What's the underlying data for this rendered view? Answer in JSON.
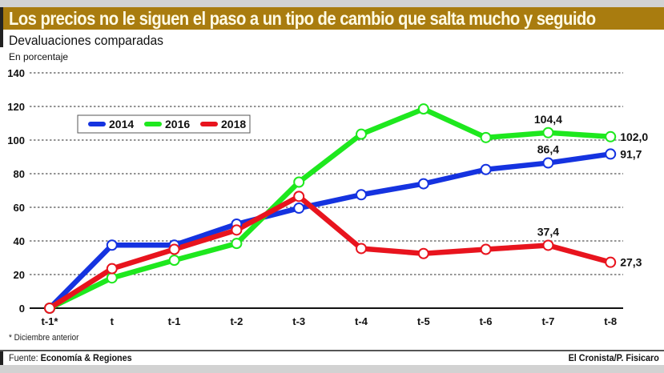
{
  "header": {
    "title": "Los precios no le siguen el paso a un tipo de cambio que salta mucho y seguido",
    "accent_color": "#a97c0f"
  },
  "chart_data": {
    "type": "line",
    "title": "Devaluaciones comparadas",
    "subtitle": "En porcentaje",
    "xlabel": "",
    "ylabel": "",
    "categories": [
      "t-1*",
      "t",
      "t-1",
      "t-2",
      "t-3",
      "t-4",
      "t-5",
      "t-6",
      "t-7",
      "t-8"
    ],
    "ylim": [
      0,
      140
    ],
    "yticks": [
      0,
      20,
      40,
      60,
      80,
      100,
      120,
      140
    ],
    "grid": true,
    "legend_position": "top-left",
    "series": [
      {
        "name": "2014",
        "color": "#1533e0",
        "values": [
          0,
          37.5,
          37.5,
          50,
          59.5,
          67.5,
          74,
          82.5,
          86.4,
          91.7
        ]
      },
      {
        "name": "2016",
        "color": "#1ee81e",
        "values": [
          0,
          18,
          28.5,
          38.5,
          75,
          103.5,
          118.5,
          101.5,
          104.4,
          102.0
        ]
      },
      {
        "name": "2018",
        "color": "#e8141e",
        "values": [
          0,
          23.5,
          35,
          46.5,
          66.5,
          35.5,
          32.5,
          35,
          37.4,
          27.3
        ]
      }
    ],
    "annotations": [
      {
        "series": "2016",
        "category": "t-7",
        "text": "104,4",
        "placement": "above"
      },
      {
        "series": "2016",
        "category": "t-8",
        "text": "102,0",
        "placement": "right"
      },
      {
        "series": "2014",
        "category": "t-7",
        "text": "86,4",
        "placement": "above"
      },
      {
        "series": "2014",
        "category": "t-8",
        "text": "91,7",
        "placement": "right"
      },
      {
        "series": "2018",
        "category": "t-7",
        "text": "37,4",
        "placement": "above"
      },
      {
        "series": "2018",
        "category": "t-8",
        "text": "27,3",
        "placement": "right"
      }
    ],
    "footnote": "* Diciembre anterior"
  },
  "footer": {
    "source_label": "Fuente: ",
    "source_name": "Economía & Regiones",
    "credit": "El Cronista/P. Fisicaro"
  }
}
